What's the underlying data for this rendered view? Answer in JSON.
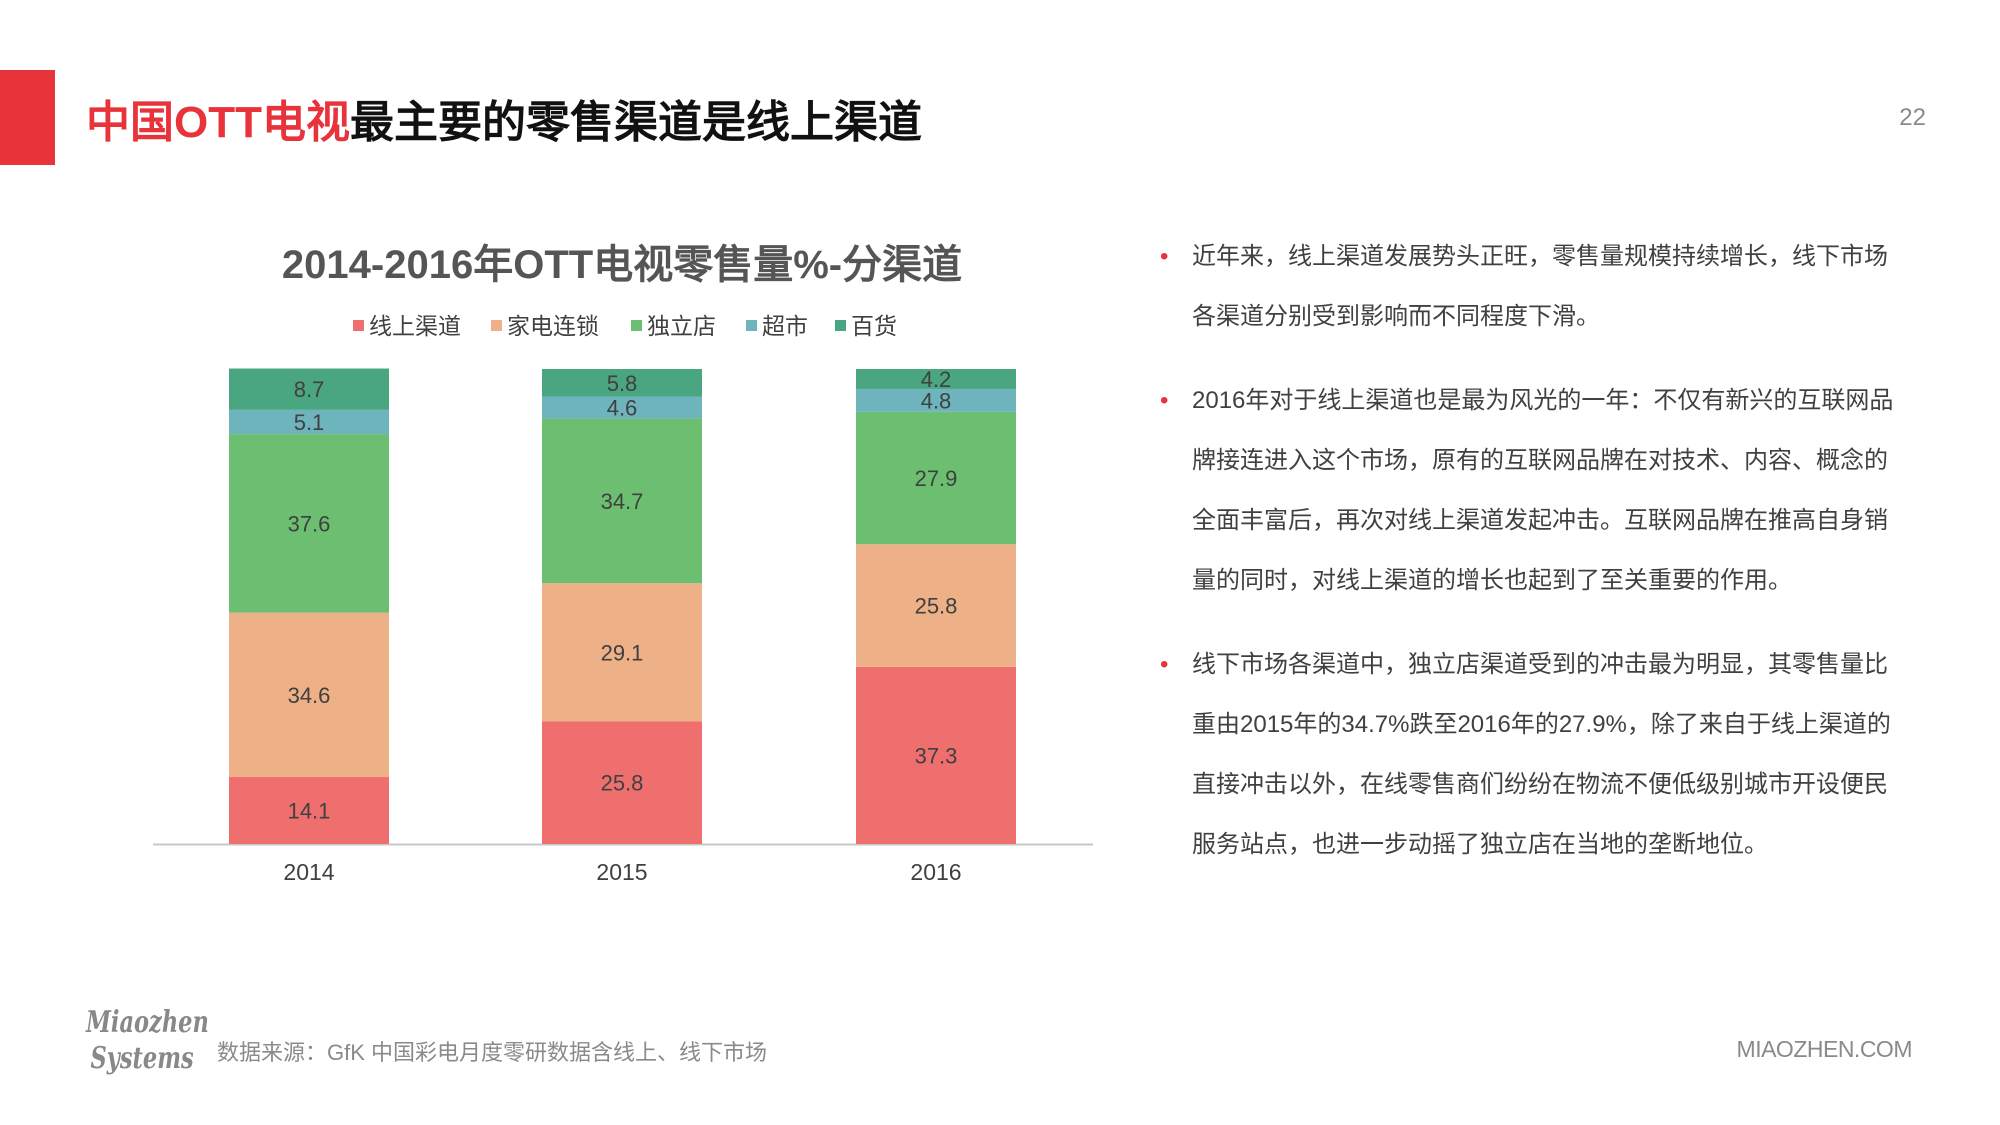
{
  "header": {
    "title_part1": "中国",
    "title_part2": "OTT电视",
    "title_part3": "最主要的零售渠道是线上渠道",
    "page_number": "22"
  },
  "colors": {
    "accent": "#e8333a"
  },
  "chart_data": {
    "type": "stacked-bar",
    "title": "2014-2016年OTT电视零售量%-分渠道",
    "legend_position": "top",
    "categories": [
      "2014",
      "2015",
      "2016"
    ],
    "series": [
      {
        "name": "线上渠道",
        "color": "#ef6f6f",
        "values": [
          14.1,
          25.8,
          37.3
        ]
      },
      {
        "name": "家电连锁",
        "color": "#edb087",
        "values": [
          34.6,
          29.1,
          25.8
        ]
      },
      {
        "name": "独立店",
        "color": "#6cbf71",
        "values": [
          37.6,
          34.7,
          27.9
        ]
      },
      {
        "name": "超市",
        "color": "#6db4bd",
        "values": [
          5.1,
          4.6,
          4.8
        ]
      },
      {
        "name": "百货",
        "color": "#4aa581",
        "values": [
          8.7,
          5.8,
          4.2
        ]
      }
    ],
    "ylim": [
      0,
      100
    ],
    "xlabel": "",
    "ylabel": ""
  },
  "bullets": [
    "近年来，线上渠道发展势头正旺，零售量规模持续增长，线下市场各渠道分别受到影响而不同程度下滑。",
    "2016年对于线上渠道也是最为风光的一年：不仅有新兴的互联网品牌接连进入这个市场，原有的互联网品牌在对技术、内容、概念的全面丰富后，再次对线上渠道发起冲击。互联网品牌在推高自身销量的同时，对线上渠道的增长也起到了至关重要的作用。",
    "线下市场各渠道中，独立店渠道受到的冲击最为明显，其零售量比重由2015年的34.7%跌至2016年的27.9%，除了来自于线上渠道的直接冲击以外，在线零售商们纷纷在物流不便低级别城市开设便民服务站点，也进一步动摇了独立店在当地的垄断地位。"
  ],
  "footer": {
    "logo_line1": "Miaozhen",
    "logo_line2": "Systems",
    "source": "数据来源：GfK 中国彩电月度零研数据含线上、线下市场",
    "site": "MIAOZHEN.COM"
  }
}
